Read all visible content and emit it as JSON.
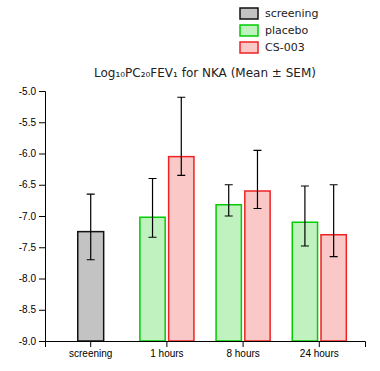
{
  "chart_data": {
    "type": "bar",
    "title": "Log₁₀PC₂₀FEV₁ for NKA (Mean ± SEM)",
    "categories": [
      "screening",
      "1 hours",
      "8 hours",
      "24 hours"
    ],
    "series": [
      {
        "name": "screening",
        "color": "#111111",
        "values": [
          -7.25,
          null,
          null,
          null
        ],
        "error_low": [
          0.45,
          null,
          null,
          null
        ],
        "error_high": [
          0.6,
          null,
          null,
          null
        ]
      },
      {
        "name": "placebo",
        "color": "#00cc00",
        "values": [
          null,
          -7.02,
          -6.82,
          -7.1
        ],
        "error_low": [
          null,
          0.32,
          0.18,
          0.38
        ],
        "error_high": [
          null,
          0.62,
          0.32,
          0.58
        ]
      },
      {
        "name": "CS-003",
        "color": "#ee2222",
        "values": [
          null,
          -6.05,
          -6.6,
          -7.3
        ],
        "error_low": [
          null,
          0.3,
          0.28,
          0.35
        ],
        "error_high": [
          null,
          0.95,
          0.65,
          0.8
        ]
      }
    ],
    "ylim": [
      -9.0,
      -5.0
    ],
    "yticks": [
      {
        "value": -9.0,
        "label": "-9.0"
      },
      {
        "value": -8.5,
        "label": "-8.5"
      },
      {
        "value": -8.0,
        "label": "-8.0"
      },
      {
        "value": -7.5,
        "label": "-7.5"
      },
      {
        "value": -7.0,
        "label": "-7.0"
      },
      {
        "value": -6.5,
        "label": "-6.5"
      },
      {
        "value": -6.0,
        "label": "-6.0"
      },
      {
        "value": -5.5,
        "label": "-5.5"
      },
      {
        "value": -5.0,
        "label": "-5.0"
      }
    ],
    "grid": false,
    "legend": "top"
  }
}
